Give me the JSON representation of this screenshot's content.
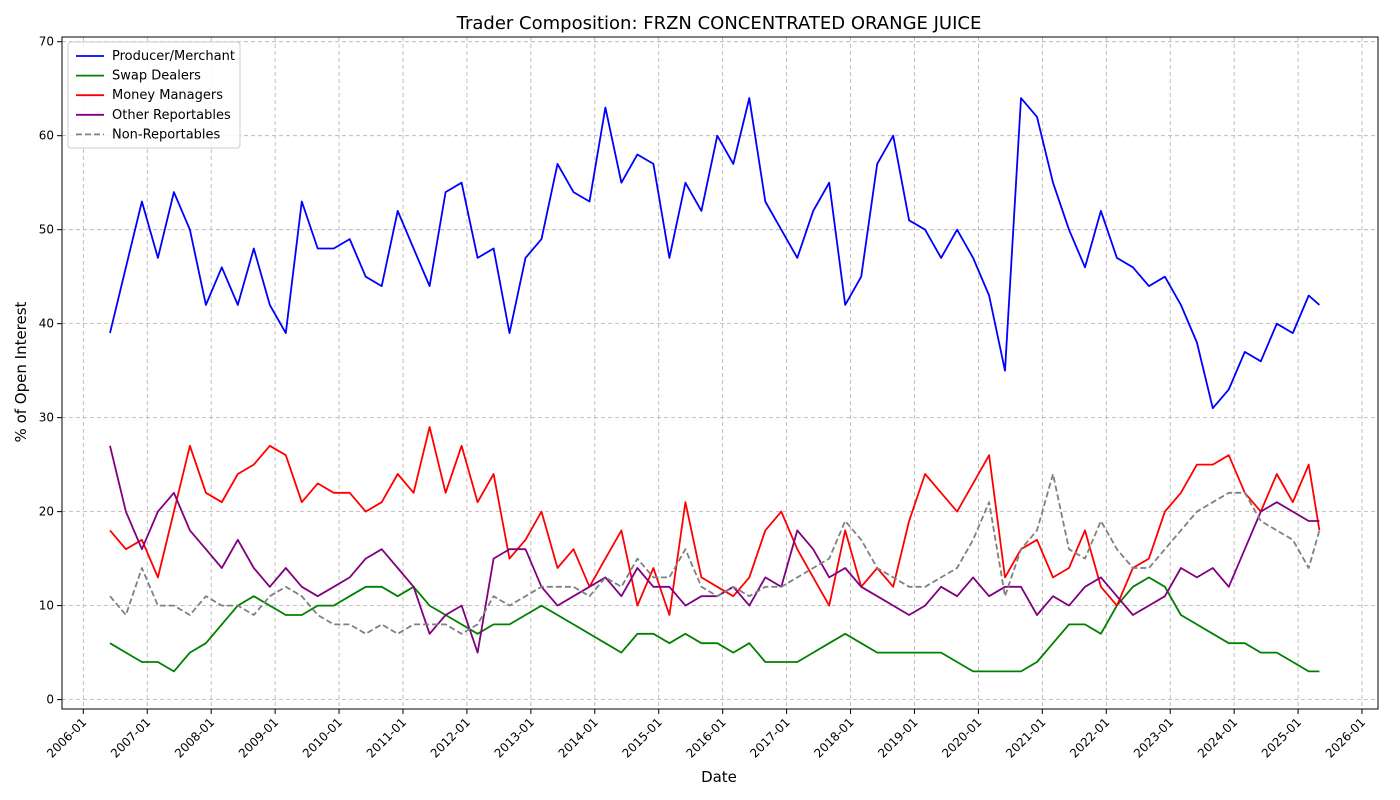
{
  "chart_data": {
    "type": "line",
    "title": "Trader Composition: FRZN CONCENTRATED ORANGE JUICE",
    "xlabel": "Date",
    "ylabel": "% of Open Interest",
    "x_ticks": [
      "2006-01",
      "2007-01",
      "2008-01",
      "2009-01",
      "2010-01",
      "2011-01",
      "2012-01",
      "2013-01",
      "2014-01",
      "2015-01",
      "2016-01",
      "2017-01",
      "2018-01",
      "2019-01",
      "2020-01",
      "2021-01",
      "2022-01",
      "2023-01",
      "2024-01",
      "2025-01",
      "2026-01"
    ],
    "y_ticks": [
      0,
      10,
      20,
      30,
      40,
      50,
      60,
      70
    ],
    "xlim": [
      "2005-09",
      "2026-04"
    ],
    "ylim": [
      -1,
      70.5
    ],
    "grid": true,
    "legend_position": "top-left",
    "series": [
      {
        "name": "Producer/Merchant",
        "color": "#0000ff",
        "dash": false,
        "x": [
          "2006-06",
          "2006-09",
          "2006-12",
          "2007-03",
          "2007-06",
          "2007-09",
          "2007-12",
          "2008-03",
          "2008-06",
          "2008-09",
          "2008-12",
          "2009-03",
          "2009-06",
          "2009-09",
          "2009-12",
          "2010-03",
          "2010-06",
          "2010-09",
          "2010-12",
          "2011-03",
          "2011-06",
          "2011-09",
          "2011-12",
          "2012-03",
          "2012-06",
          "2012-09",
          "2012-12",
          "2013-03",
          "2013-06",
          "2013-09",
          "2013-12",
          "2014-03",
          "2014-06",
          "2014-09",
          "2014-12",
          "2015-03",
          "2015-06",
          "2015-09",
          "2015-12",
          "2016-03",
          "2016-06",
          "2016-09",
          "2016-12",
          "2017-03",
          "2017-06",
          "2017-09",
          "2017-12",
          "2018-03",
          "2018-06",
          "2018-09",
          "2018-12",
          "2019-03",
          "2019-06",
          "2019-09",
          "2019-12",
          "2020-03",
          "2020-06",
          "2020-09",
          "2020-12",
          "2021-03",
          "2021-06",
          "2021-09",
          "2021-12",
          "2022-03",
          "2022-06",
          "2022-09",
          "2022-12",
          "2023-03",
          "2023-06",
          "2023-09",
          "2023-12",
          "2024-03",
          "2024-06",
          "2024-09",
          "2024-12",
          "2025-03",
          "2025-05"
        ],
        "y": [
          39,
          46,
          53,
          47,
          54,
          50,
          42,
          46,
          42,
          48,
          42,
          39,
          53,
          48,
          48,
          49,
          45,
          44,
          52,
          48,
          44,
          54,
          55,
          47,
          48,
          39,
          47,
          49,
          57,
          54,
          53,
          63,
          55,
          58,
          57,
          47,
          55,
          52,
          60,
          57,
          64,
          53,
          50,
          47,
          52,
          55,
          42,
          45,
          57,
          60,
          51,
          50,
          47,
          50,
          47,
          43,
          35,
          64,
          62,
          55,
          50,
          46,
          52,
          47,
          46,
          44,
          45,
          42,
          38,
          31,
          33,
          37,
          36,
          40,
          39,
          43,
          42
        ]
      },
      {
        "name": "Swap Dealers",
        "color": "#008000",
        "dash": false,
        "x": [
          "2006-06",
          "2006-09",
          "2006-12",
          "2007-03",
          "2007-06",
          "2007-09",
          "2007-12",
          "2008-03",
          "2008-06",
          "2008-09",
          "2008-12",
          "2009-03",
          "2009-06",
          "2009-09",
          "2009-12",
          "2010-03",
          "2010-06",
          "2010-09",
          "2010-12",
          "2011-03",
          "2011-06",
          "2011-09",
          "2011-12",
          "2012-03",
          "2012-06",
          "2012-09",
          "2012-12",
          "2013-03",
          "2013-06",
          "2013-09",
          "2013-12",
          "2014-03",
          "2014-06",
          "2014-09",
          "2014-12",
          "2015-03",
          "2015-06",
          "2015-09",
          "2015-12",
          "2016-03",
          "2016-06",
          "2016-09",
          "2016-12",
          "2017-03",
          "2017-06",
          "2017-09",
          "2017-12",
          "2018-03",
          "2018-06",
          "2018-09",
          "2018-12",
          "2019-03",
          "2019-06",
          "2019-09",
          "2019-12",
          "2020-03",
          "2020-06",
          "2020-09",
          "2020-12",
          "2021-03",
          "2021-06",
          "2021-09",
          "2021-12",
          "2022-03",
          "2022-06",
          "2022-09",
          "2022-12",
          "2023-03",
          "2023-06",
          "2023-09",
          "2023-12",
          "2024-03",
          "2024-06",
          "2024-09",
          "2024-12",
          "2025-03",
          "2025-05"
        ],
        "y": [
          6,
          5,
          4,
          4,
          3,
          5,
          6,
          8,
          10,
          11,
          10,
          9,
          9,
          10,
          10,
          11,
          12,
          12,
          11,
          12,
          10,
          9,
          8,
          7,
          8,
          8,
          9,
          10,
          9,
          8,
          7,
          6,
          5,
          7,
          7,
          6,
          7,
          6,
          6,
          5,
          6,
          4,
          4,
          4,
          5,
          6,
          7,
          6,
          5,
          5,
          5,
          5,
          5,
          4,
          3,
          3,
          3,
          3,
          4,
          6,
          8,
          8,
          7,
          10,
          12,
          13,
          12,
          9,
          8,
          7,
          6,
          6,
          5,
          5,
          4,
          3,
          3
        ]
      },
      {
        "name": "Money Managers",
        "color": "#ff0000",
        "dash": false,
        "x": [
          "2006-06",
          "2006-09",
          "2006-12",
          "2007-03",
          "2007-06",
          "2007-09",
          "2007-12",
          "2008-03",
          "2008-06",
          "2008-09",
          "2008-12",
          "2009-03",
          "2009-06",
          "2009-09",
          "2009-12",
          "2010-03",
          "2010-06",
          "2010-09",
          "2010-12",
          "2011-03",
          "2011-06",
          "2011-09",
          "2011-12",
          "2012-03",
          "2012-06",
          "2012-09",
          "2012-12",
          "2013-03",
          "2013-06",
          "2013-09",
          "2013-12",
          "2014-03",
          "2014-06",
          "2014-09",
          "2014-12",
          "2015-03",
          "2015-06",
          "2015-09",
          "2015-12",
          "2016-03",
          "2016-06",
          "2016-09",
          "2016-12",
          "2017-03",
          "2017-06",
          "2017-09",
          "2017-12",
          "2018-03",
          "2018-06",
          "2018-09",
          "2018-12",
          "2019-03",
          "2019-06",
          "2019-09",
          "2019-12",
          "2020-03",
          "2020-06",
          "2020-09",
          "2020-12",
          "2021-03",
          "2021-06",
          "2021-09",
          "2021-12",
          "2022-03",
          "2022-06",
          "2022-09",
          "2022-12",
          "2023-03",
          "2023-06",
          "2023-09",
          "2023-12",
          "2024-03",
          "2024-06",
          "2024-09",
          "2024-12",
          "2025-03",
          "2025-05"
        ],
        "y": [
          18,
          16,
          17,
          13,
          20,
          27,
          22,
          21,
          24,
          25,
          27,
          26,
          21,
          23,
          22,
          22,
          20,
          21,
          24,
          22,
          29,
          22,
          27,
          21,
          24,
          15,
          17,
          20,
          14,
          16,
          12,
          15,
          18,
          10,
          14,
          9,
          21,
          13,
          12,
          11,
          13,
          18,
          20,
          16,
          13,
          10,
          18,
          12,
          14,
          12,
          19,
          24,
          22,
          20,
          23,
          26,
          13,
          16,
          17,
          13,
          14,
          18,
          12,
          10,
          14,
          15,
          20,
          22,
          25,
          25,
          26,
          22,
          20,
          24,
          21,
          25,
          18
        ]
      },
      {
        "name": "Other Reportables",
        "color": "#800080",
        "dash": false,
        "x": [
          "2006-06",
          "2006-09",
          "2006-12",
          "2007-03",
          "2007-06",
          "2007-09",
          "2007-12",
          "2008-03",
          "2008-06",
          "2008-09",
          "2008-12",
          "2009-03",
          "2009-06",
          "2009-09",
          "2009-12",
          "2010-03",
          "2010-06",
          "2010-09",
          "2010-12",
          "2011-03",
          "2011-06",
          "2011-09",
          "2011-12",
          "2012-03",
          "2012-06",
          "2012-09",
          "2012-12",
          "2013-03",
          "2013-06",
          "2013-09",
          "2013-12",
          "2014-03",
          "2014-06",
          "2014-09",
          "2014-12",
          "2015-03",
          "2015-06",
          "2015-09",
          "2015-12",
          "2016-03",
          "2016-06",
          "2016-09",
          "2016-12",
          "2017-03",
          "2017-06",
          "2017-09",
          "2017-12",
          "2018-03",
          "2018-06",
          "2018-09",
          "2018-12",
          "2019-03",
          "2019-06",
          "2019-09",
          "2019-12",
          "2020-03",
          "2020-06",
          "2020-09",
          "2020-12",
          "2021-03",
          "2021-06",
          "2021-09",
          "2021-12",
          "2022-03",
          "2022-06",
          "2022-09",
          "2022-12",
          "2023-03",
          "2023-06",
          "2023-09",
          "2023-12",
          "2024-03",
          "2024-06",
          "2024-09",
          "2024-12",
          "2025-03",
          "2025-05"
        ],
        "y": [
          27,
          20,
          16,
          20,
          22,
          18,
          16,
          14,
          17,
          14,
          12,
          14,
          12,
          11,
          12,
          13,
          15,
          16,
          14,
          12,
          7,
          9,
          10,
          5,
          15,
          16,
          16,
          12,
          10,
          11,
          12,
          13,
          11,
          14,
          12,
          12,
          10,
          11,
          11,
          12,
          10,
          13,
          12,
          18,
          16,
          13,
          14,
          12,
          11,
          10,
          9,
          10,
          12,
          11,
          13,
          11,
          12,
          12,
          9,
          11,
          10,
          12,
          13,
          11,
          9,
          10,
          11,
          14,
          13,
          14,
          12,
          16,
          20,
          21,
          20,
          19,
          19
        ]
      },
      {
        "name": "Non-Reportables",
        "color": "#808080",
        "dash": true,
        "x": [
          "2006-06",
          "2006-09",
          "2006-12",
          "2007-03",
          "2007-06",
          "2007-09",
          "2007-12",
          "2008-03",
          "2008-06",
          "2008-09",
          "2008-12",
          "2009-03",
          "2009-06",
          "2009-09",
          "2009-12",
          "2010-03",
          "2010-06",
          "2010-09",
          "2010-12",
          "2011-03",
          "2011-06",
          "2011-09",
          "2011-12",
          "2012-03",
          "2012-06",
          "2012-09",
          "2012-12",
          "2013-03",
          "2013-06",
          "2013-09",
          "2013-12",
          "2014-03",
          "2014-06",
          "2014-09",
          "2014-12",
          "2015-03",
          "2015-06",
          "2015-09",
          "2015-12",
          "2016-03",
          "2016-06",
          "2016-09",
          "2016-12",
          "2017-03",
          "2017-06",
          "2017-09",
          "2017-12",
          "2018-03",
          "2018-06",
          "2018-09",
          "2018-12",
          "2019-03",
          "2019-06",
          "2019-09",
          "2019-12",
          "2020-03",
          "2020-06",
          "2020-09",
          "2020-12",
          "2021-03",
          "2021-06",
          "2021-09",
          "2021-12",
          "2022-03",
          "2022-06",
          "2022-09",
          "2022-12",
          "2023-03",
          "2023-06",
          "2023-09",
          "2023-12",
          "2024-03",
          "2024-06",
          "2024-09",
          "2024-12",
          "2025-03",
          "2025-05"
        ],
        "y": [
          11,
          9,
          14,
          10,
          10,
          9,
          11,
          10,
          10,
          9,
          11,
          12,
          11,
          9,
          8,
          8,
          7,
          8,
          7,
          8,
          8,
          8,
          7,
          8,
          11,
          10,
          11,
          12,
          12,
          12,
          11,
          13,
          12,
          15,
          13,
          13,
          16,
          12,
          11,
          12,
          11,
          12,
          12,
          13,
          14,
          15,
          19,
          17,
          14,
          13,
          12,
          12,
          13,
          14,
          17,
          21,
          11,
          16,
          18,
          24,
          16,
          15,
          19,
          16,
          14,
          14,
          16,
          18,
          20,
          21,
          22,
          22,
          19,
          18,
          17,
          14,
          18
        ]
      }
    ]
  }
}
